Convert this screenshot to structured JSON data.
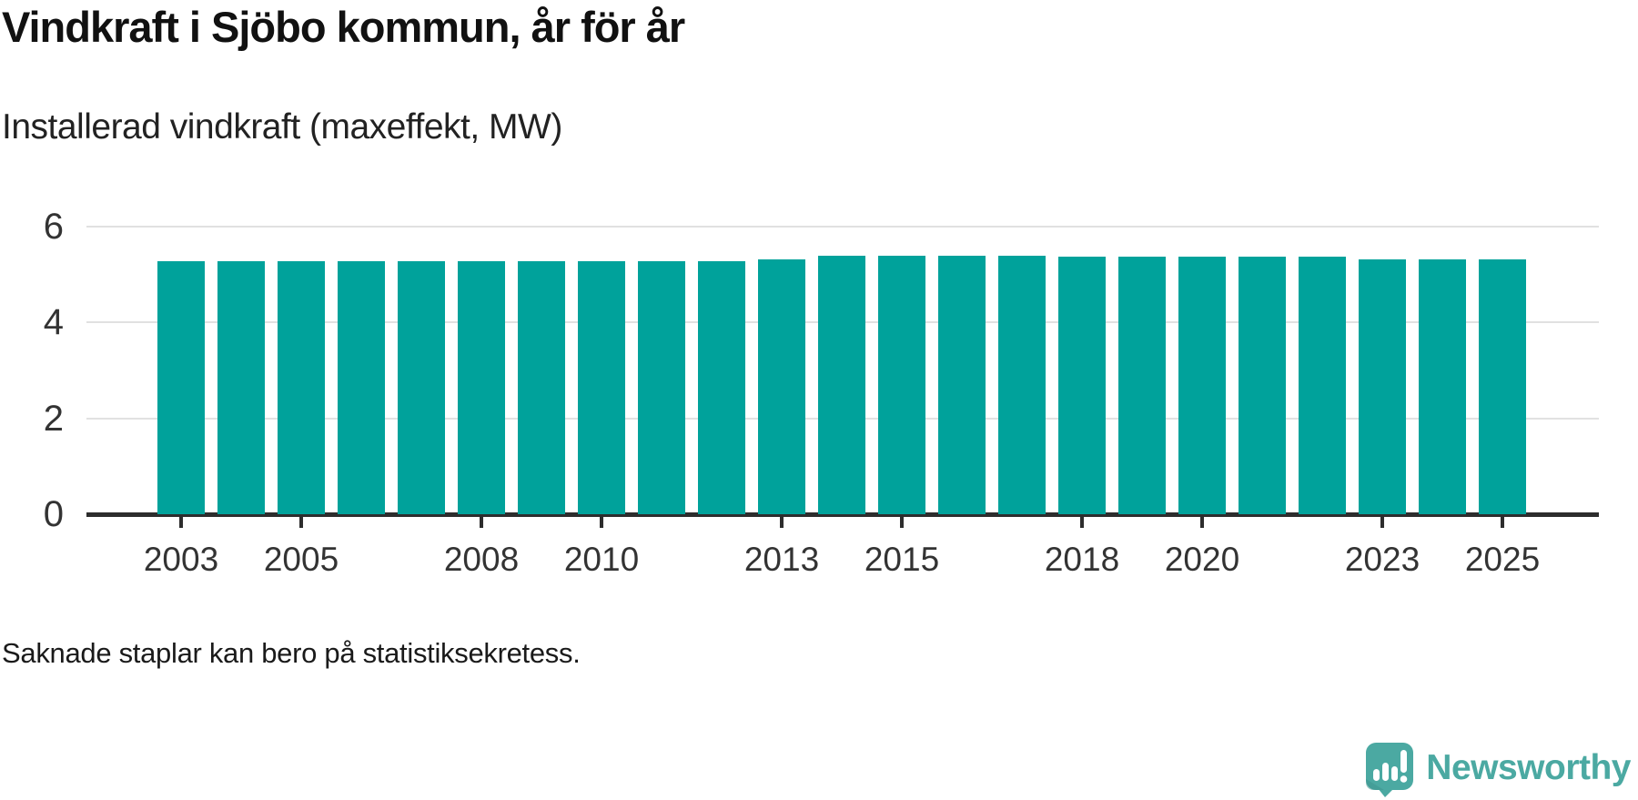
{
  "header": {
    "title": "Vindkraft i Sjöbo kommun, år för år",
    "subtitle": "Installerad vindkraft (maxeffekt, MW)"
  },
  "chart_data": {
    "type": "bar",
    "title": "Vindkraft i Sjöbo kommun, år för år",
    "subtitle": "Installerad vindkraft (maxeffekt, MW)",
    "ylabel": "Installerad vindkraft (maxeffekt, MW)",
    "xlabel": "",
    "x": [
      2003,
      2004,
      2005,
      2006,
      2007,
      2008,
      2009,
      2010,
      2011,
      2012,
      2013,
      2014,
      2015,
      2016,
      2017,
      2018,
      2019,
      2020,
      2021,
      2022,
      2023,
      2024,
      2025
    ],
    "values": [
      5.28,
      5.28,
      5.28,
      5.28,
      5.28,
      5.28,
      5.28,
      5.28,
      5.28,
      5.28,
      5.31,
      5.4,
      5.4,
      5.4,
      5.4,
      5.37,
      5.37,
      5.37,
      5.37,
      5.37,
      5.32,
      5.32,
      5.32
    ],
    "ylim": [
      0,
      6
    ],
    "yticks": [
      0,
      2,
      4,
      6
    ],
    "xticks": [
      2003,
      2005,
      2008,
      2010,
      2013,
      2015,
      2018,
      2020,
      2023,
      2025
    ],
    "grid": "horizontal",
    "legend": "none",
    "bar_color": "#00a29b"
  },
  "footer": {
    "note": "Saknade staplar kan bero på statistiksekretess.",
    "brand": "Newsworthy"
  },
  "colors": {
    "bar": "#00a29b",
    "axis": "#2d2d2d",
    "gridline": "#e1e1e1",
    "brand_teal": "#4ba9a2",
    "title_text": "#111111",
    "tick_text": "#333333"
  }
}
